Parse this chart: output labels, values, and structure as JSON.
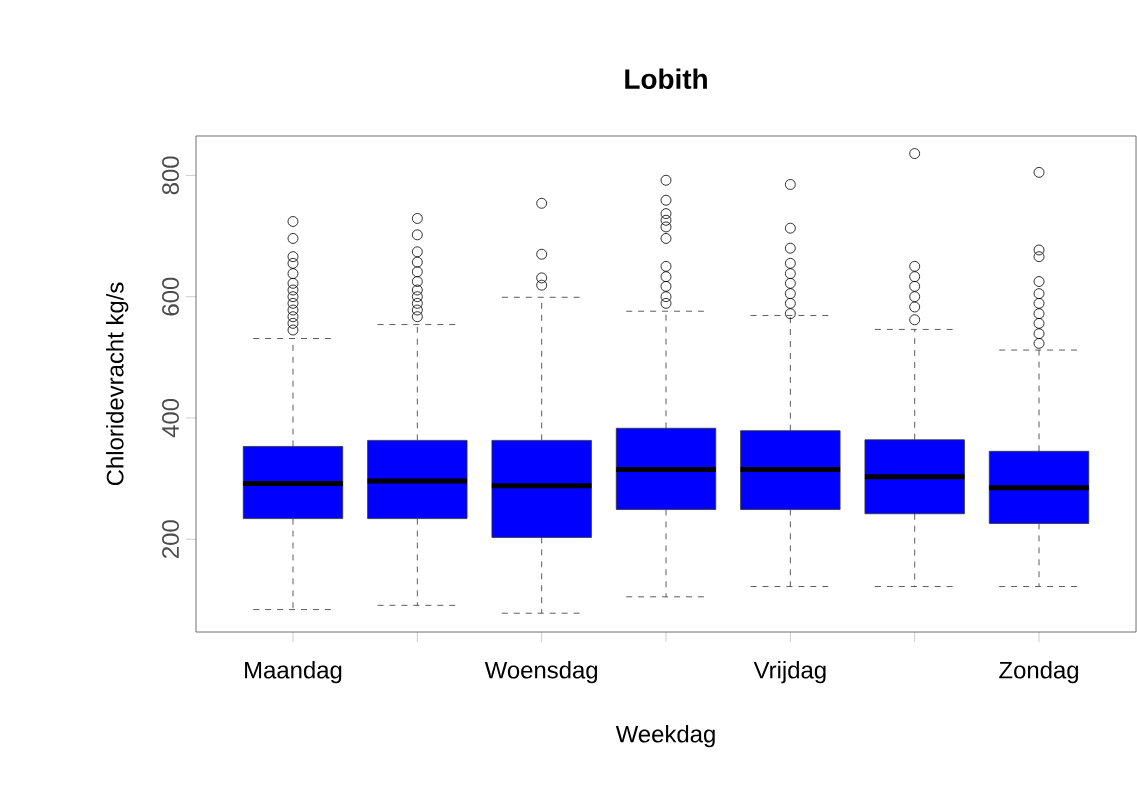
{
  "chart_data": {
    "type": "box",
    "title": "Lobith",
    "xlabel": "Weekdag",
    "ylabel": "Chloridevracht kg/s",
    "categories": [
      "Maandag",
      null,
      "Woensdag",
      null,
      "Vrijdag",
      null,
      "Zondag"
    ],
    "color": "#0000ff",
    "ylim": [
      47,
      865
    ],
    "yticks": [
      200,
      400,
      600,
      800
    ],
    "boxes": [
      {
        "low": 84,
        "q1": 234,
        "median": 292,
        "q3": 353,
        "high": 531,
        "outliers": [
          724,
          696,
          666,
          655,
          638,
          622,
          611,
          600,
          589,
          578,
          567,
          556,
          545
        ]
      },
      {
        "low": 91,
        "q1": 234,
        "median": 296,
        "q3": 363,
        "high": 554,
        "outliers": [
          729,
          702,
          674,
          657,
          641,
          625,
          611,
          600,
          589,
          578,
          567
        ]
      },
      {
        "low": 78,
        "q1": 203,
        "median": 288,
        "q3": 363,
        "high": 599,
        "outliers": [
          754,
          670,
          631,
          619
        ]
      },
      {
        "low": 105,
        "q1": 249,
        "median": 315,
        "q3": 383,
        "high": 576,
        "outliers": [
          792,
          759,
          737,
          726,
          715,
          696,
          650,
          633,
          617,
          600,
          589
        ]
      },
      {
        "low": 122,
        "q1": 249,
        "median": 315,
        "q3": 379,
        "high": 569,
        "outliers": [
          785,
          713,
          680,
          655,
          638,
          622,
          605,
          589,
          572
        ]
      },
      {
        "low": 122,
        "q1": 242,
        "median": 303,
        "q3": 364,
        "high": 546,
        "outliers": [
          836,
          650,
          633,
          617,
          600,
          583,
          562
        ]
      },
      {
        "low": 122,
        "q1": 226,
        "median": 285,
        "q3": 345,
        "high": 512,
        "outliers": [
          805,
          677,
          666,
          625,
          605,
          589,
          572,
          556,
          539,
          523
        ]
      }
    ]
  }
}
